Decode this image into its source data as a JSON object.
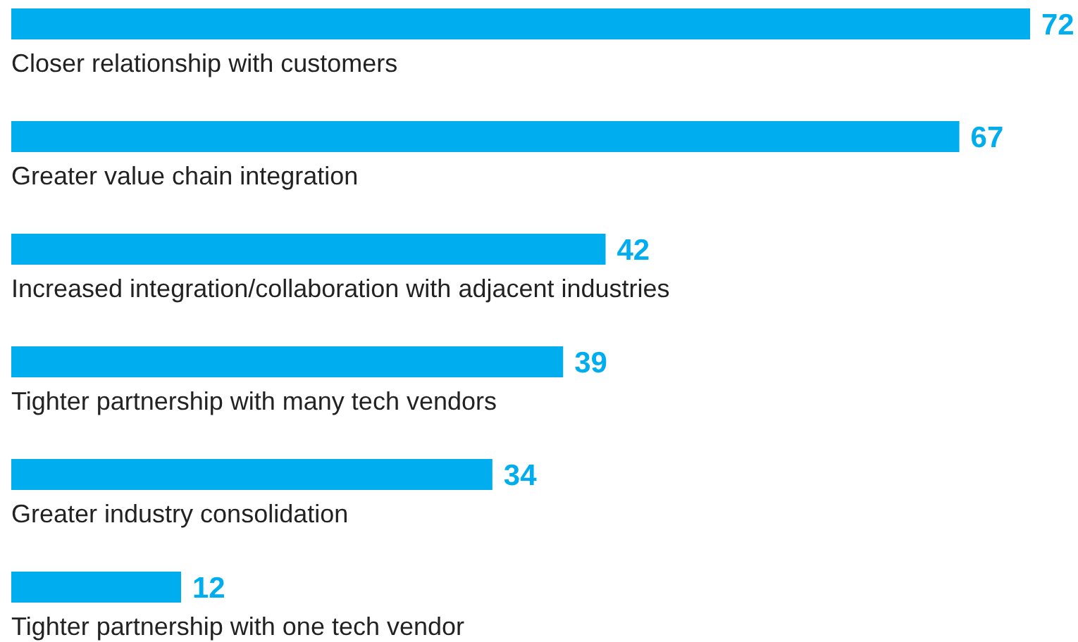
{
  "chart_data": {
    "type": "bar",
    "orientation": "horizontal",
    "categories": [
      "Closer relationship with customers",
      "Greater value chain integration",
      "Increased integration/collaboration with adjacent industries",
      "Tighter partnership with many tech vendors",
      "Greater industry consolidation",
      "Tighter partnership with one tech vendor"
    ],
    "values": [
      72,
      67,
      42,
      39,
      34,
      12
    ],
    "color": "#00aeef",
    "data_labels": true
  }
}
